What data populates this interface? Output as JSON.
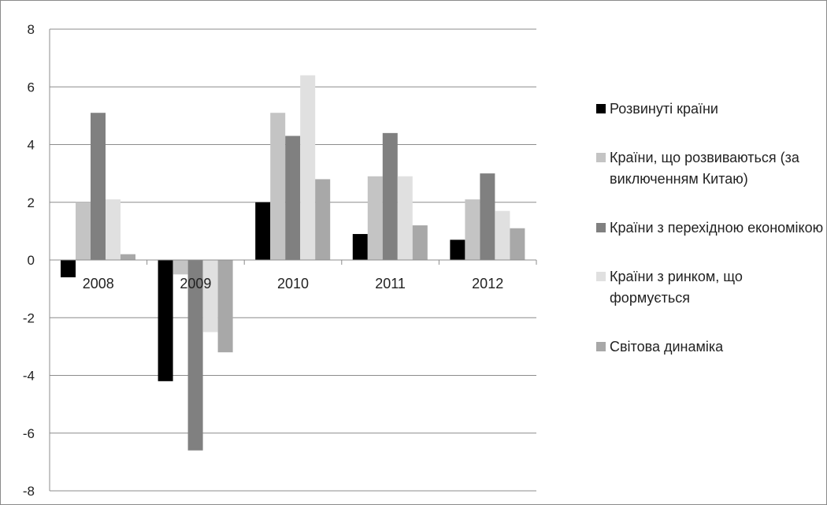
{
  "chart_data": {
    "type": "bar",
    "title": "",
    "xlabel": "",
    "ylabel": "",
    "categories": [
      "2008",
      "2009",
      "2010",
      "2011",
      "2012"
    ],
    "y_ticks": [
      "8",
      "6",
      "4",
      "2",
      "0",
      "-2",
      "-4",
      "-6",
      "-8"
    ],
    "ylim": [
      -8,
      8
    ],
    "grid": true,
    "legend_position": "right",
    "series": [
      {
        "name": "Розвинуті країни",
        "color": "#000000",
        "values": [
          -0.6,
          -4.2,
          2.0,
          0.9,
          0.7
        ]
      },
      {
        "name": "Країни, що розвиваються (за виключенням Китаю)",
        "color": "#c4c4c4",
        "values": [
          2.0,
          -0.5,
          5.1,
          2.9,
          2.1
        ]
      },
      {
        "name": "Країни з перехідною економікою",
        "color": "#808080",
        "values": [
          5.1,
          -6.6,
          4.3,
          4.4,
          3.0
        ]
      },
      {
        "name": "Країни з ринком, що формується",
        "color": "#e0e0e0",
        "values": [
          2.1,
          -2.5,
          6.4,
          2.9,
          1.7
        ]
      },
      {
        "name": "Світова динаміка",
        "color": "#a8a8a8",
        "values": [
          0.2,
          -3.2,
          2.8,
          1.2,
          1.1
        ]
      }
    ]
  }
}
